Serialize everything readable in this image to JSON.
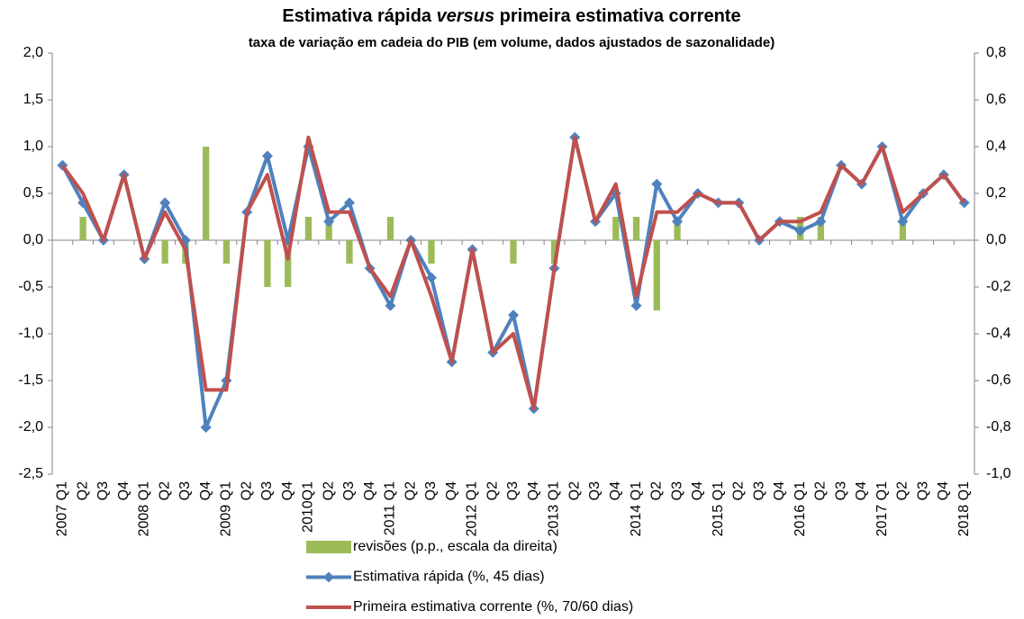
{
  "chart_data": {
    "type": "combo",
    "title": [
      "Estimativa rápida",
      "versus",
      "primeira estimativa corrente"
    ],
    "subtitle": "taxa de variação em cadeia do PIB (em volume, dados ajustados de sazonalidade)",
    "categories": [
      "2007 Q1",
      "Q2",
      "Q3",
      "Q4",
      "2008 Q1",
      "Q2",
      "Q3",
      "Q4",
      "2009 Q1",
      "Q2",
      "Q3",
      "Q4",
      "2010Q1",
      "Q2",
      "Q3",
      "Q4",
      "2011 Q1",
      "Q2",
      "Q3",
      "Q4",
      "2012 Q1",
      "Q2",
      "Q3",
      "Q4",
      "2013 Q1",
      "Q2",
      "Q3",
      "Q4",
      "2014 Q1",
      "Q2",
      "Q3",
      "Q4",
      "2015 Q1",
      "Q2",
      "Q3",
      "Q4",
      "2016 Q1",
      "Q2",
      "Q3",
      "Q4",
      "2017 Q1",
      "Q2",
      "Q3",
      "Q4",
      "2018 Q1"
    ],
    "series": [
      {
        "name": "revisões (p.p., escala da direita)",
        "type": "bar",
        "axis": "y2",
        "color": "#9bbb59",
        "values": [
          0,
          0.1,
          0,
          0,
          0,
          -0.1,
          -0.1,
          0.4,
          -0.1,
          0,
          -0.2,
          -0.2,
          0.1,
          0.1,
          -0.1,
          0,
          0.1,
          0,
          -0.1,
          0,
          0,
          0,
          -0.1,
          0,
          -0.1,
          0,
          0,
          0.1,
          0.1,
          -0.3,
          0.1,
          0,
          0,
          0,
          0,
          0,
          0.1,
          0.1,
          0,
          0,
          0,
          0.1,
          0,
          0,
          0
        ]
      },
      {
        "name": "Estimativa rápida (%, 45 dias)",
        "type": "line",
        "marker": "diamond",
        "color": "#4f81bd",
        "values": [
          0.8,
          0.4,
          0.0,
          0.7,
          -0.2,
          0.4,
          0.0,
          -2.0,
          -1.5,
          0.3,
          0.9,
          0.0,
          1.0,
          0.2,
          0.4,
          -0.3,
          -0.7,
          0.0,
          -0.4,
          -1.3,
          -0.1,
          -1.2,
          -0.8,
          -1.8,
          -0.3,
          1.1,
          0.2,
          0.5,
          -0.7,
          0.6,
          0.2,
          0.5,
          0.4,
          0.4,
          0.0,
          0.2,
          0.1,
          0.2,
          0.8,
          0.6,
          1.0,
          0.2,
          0.5,
          0.7,
          0.4
        ]
      },
      {
        "name": "Primeira estimativa corrente (%, 70/60 dias)",
        "type": "line",
        "color": "#c0504d",
        "values": [
          0.8,
          0.5,
          0.0,
          0.7,
          -0.2,
          0.3,
          -0.1,
          -1.6,
          -1.6,
          0.3,
          0.7,
          -0.2,
          1.1,
          0.3,
          0.3,
          -0.3,
          -0.6,
          0.0,
          -0.6,
          -1.3,
          -0.1,
          -1.2,
          -1.0,
          -1.8,
          -0.3,
          1.1,
          0.2,
          0.6,
          -0.6,
          0.3,
          0.3,
          0.5,
          0.4,
          0.4,
          0.0,
          0.2,
          0.2,
          0.3,
          0.8,
          0.6,
          1.0,
          0.3,
          0.5,
          0.7,
          0.4
        ]
      }
    ],
    "ylim": [
      -2.5,
      2.0
    ],
    "yticks": [
      {
        "value": -2.5,
        "label": "-2,5"
      },
      {
        "value": -2.0,
        "label": "-2,0"
      },
      {
        "value": -1.5,
        "label": "-1,5"
      },
      {
        "value": -1.0,
        "label": "-1,0"
      },
      {
        "value": -0.5,
        "label": "-0,5"
      },
      {
        "value": 0,
        "label": "0,0"
      },
      {
        "value": 0.5,
        "label": "0,5"
      },
      {
        "value": 1.0,
        "label": "1,0"
      },
      {
        "value": 1.5,
        "label": "1,5"
      },
      {
        "value": 2.0,
        "label": "2,0"
      }
    ],
    "y2lim": [
      -1.0,
      0.8
    ],
    "y2ticks": [
      {
        "value": -1.0,
        "label": "-1,0"
      },
      {
        "value": -0.8,
        "label": "-0,8"
      },
      {
        "value": -0.6,
        "label": "-0,6"
      },
      {
        "value": -0.4,
        "label": "-0,4"
      },
      {
        "value": -0.2,
        "label": "-0,2"
      },
      {
        "value": 0,
        "label": "0,0"
      },
      {
        "value": 0.2,
        "label": "0,2"
      },
      {
        "value": 0.4,
        "label": "0,4"
      },
      {
        "value": 0.6,
        "label": "0,6"
      },
      {
        "value": 0.8,
        "label": "0,8"
      }
    ],
    "grid": false,
    "legend": "bottom"
  }
}
